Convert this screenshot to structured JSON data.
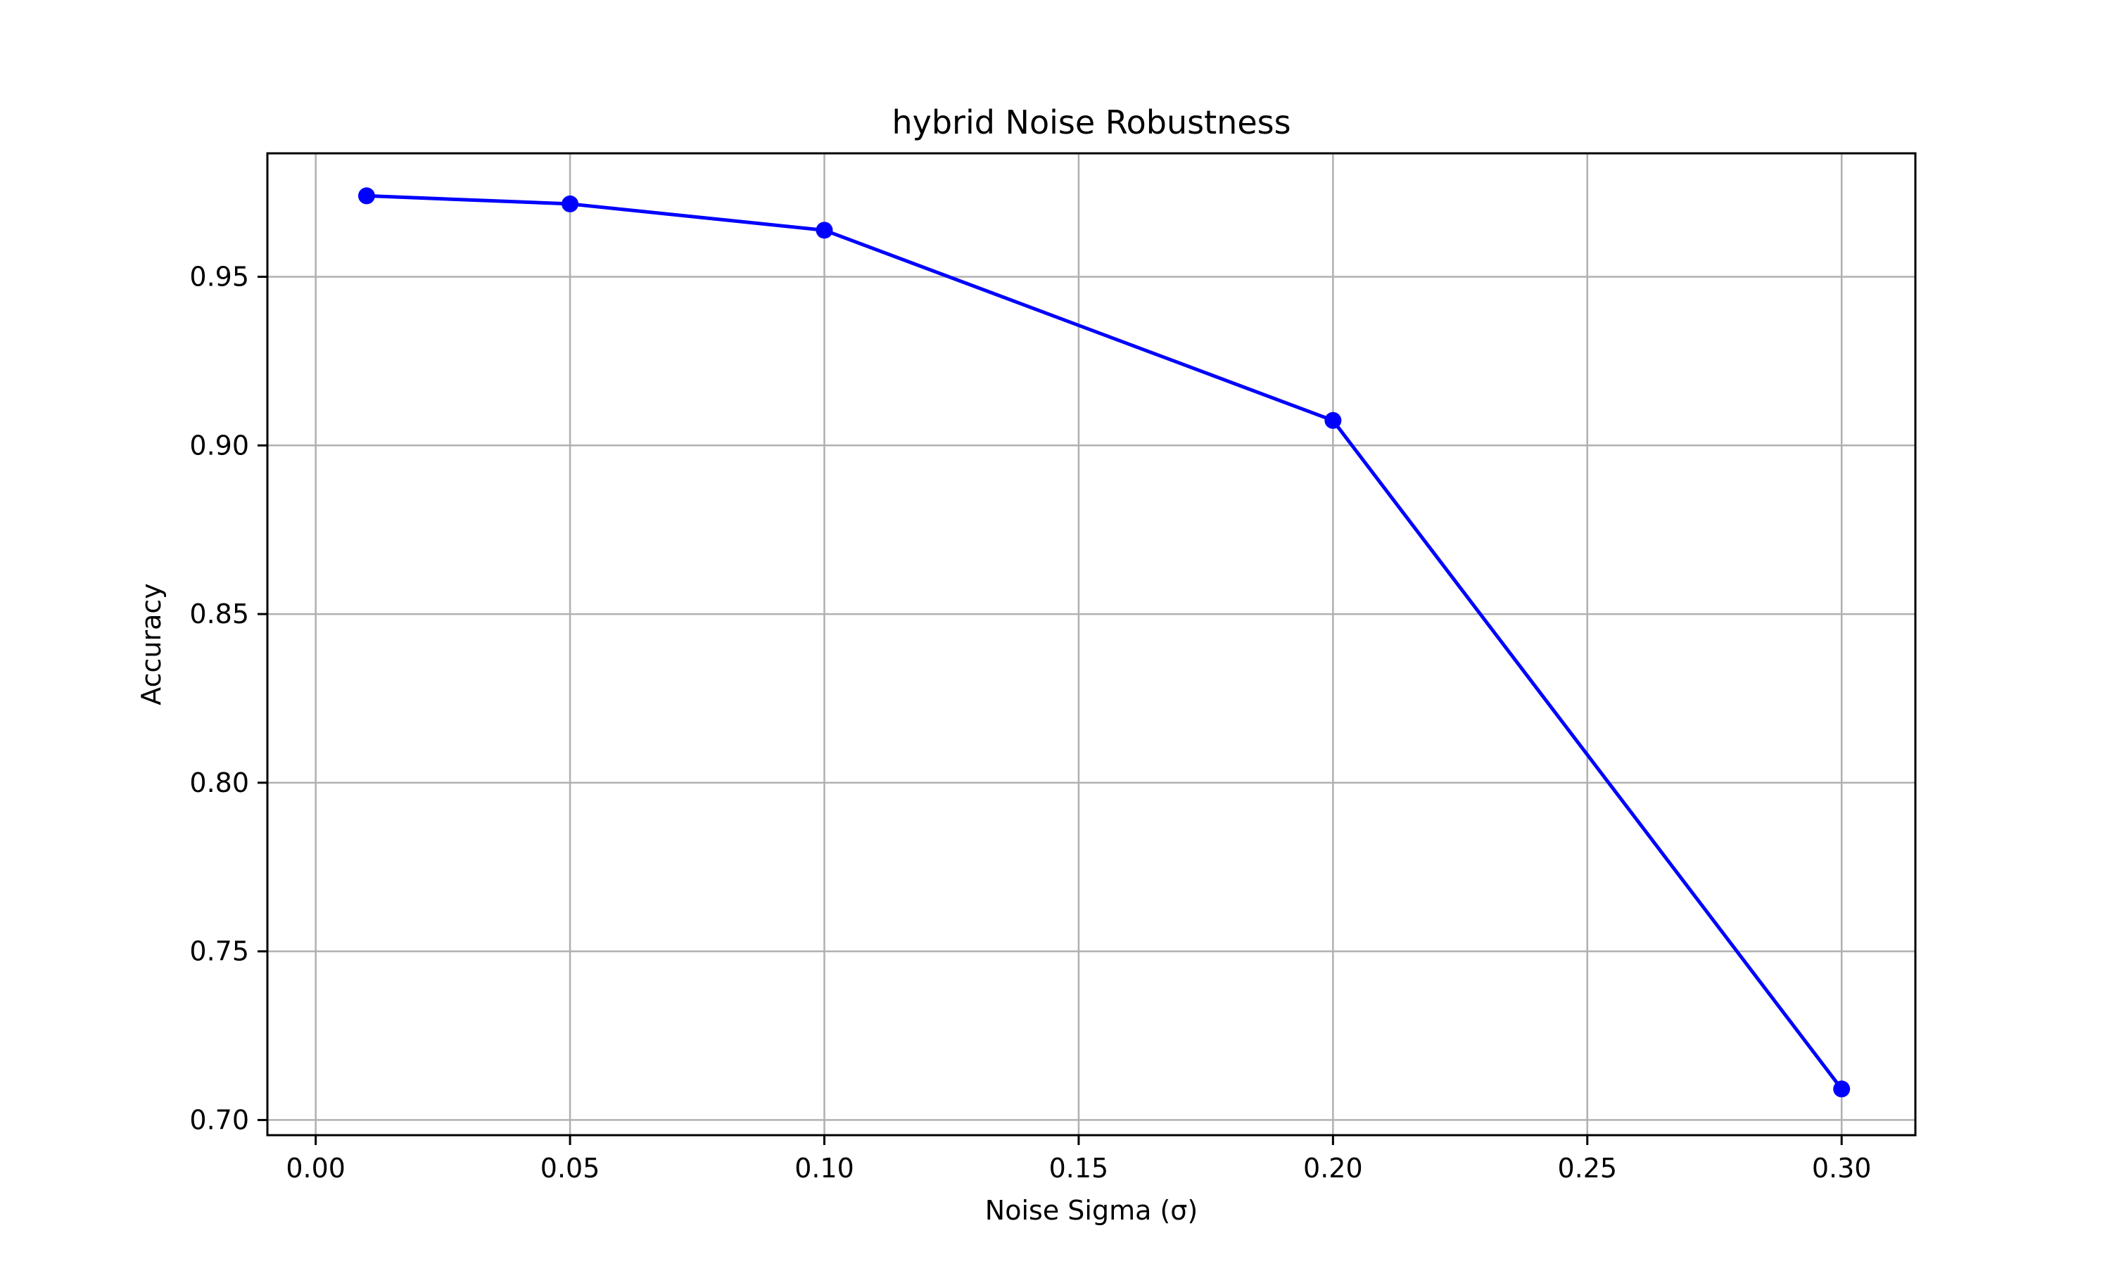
{
  "chart_data": {
    "type": "line",
    "title": "hybrid Noise Robustness",
    "xlabel": "Noise Sigma (σ)",
    "ylabel": "Accuracy",
    "xlim": [
      -0.0095,
      0.3145
    ],
    "ylim": [
      0.6955,
      0.9866
    ],
    "xticks": [
      0.0,
      0.05,
      0.1,
      0.15,
      0.2,
      0.25,
      0.3
    ],
    "xtick_labels": [
      "0.00",
      "0.05",
      "0.10",
      "0.15",
      "0.20",
      "0.25",
      "0.30"
    ],
    "yticks": [
      0.7,
      0.75,
      0.8,
      0.85,
      0.9,
      0.95
    ],
    "ytick_labels": [
      "0.70",
      "0.75",
      "0.80",
      "0.85",
      "0.90",
      "0.95"
    ],
    "grid": true,
    "series": [
      {
        "color": "#0000ff",
        "marker": "circle",
        "x": [
          0.01,
          0.05,
          0.1,
          0.2,
          0.3
        ],
        "y": [
          0.974,
          0.9716,
          0.9638,
          0.9074,
          0.7092
        ]
      }
    ]
  }
}
